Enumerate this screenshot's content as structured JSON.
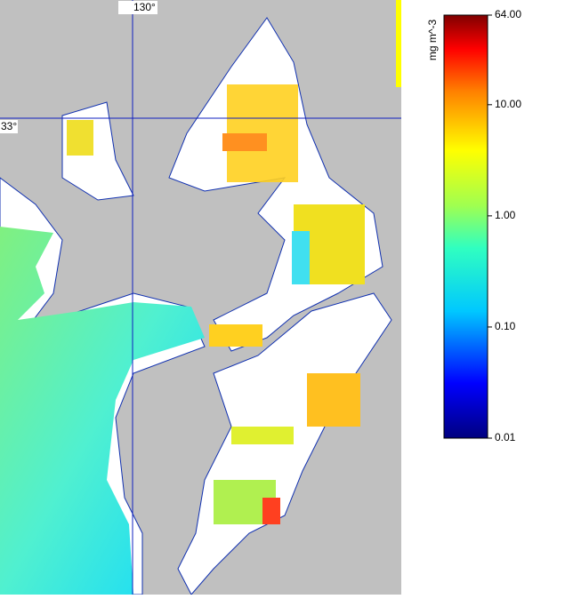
{
  "map": {
    "grid_labels": {
      "longitude": "130°",
      "latitude": "33°"
    },
    "colorbar": {
      "unit": "mg m^-3",
      "log": true,
      "lim": [
        0.01,
        64
      ],
      "ticks": [
        {
          "value": 64,
          "label": "64.00"
        },
        {
          "value": 10,
          "label": "10.00"
        },
        {
          "value": 1,
          "label": "1.00"
        },
        {
          "value": 0.1,
          "label": "0.10"
        },
        {
          "value": 0.01,
          "label": "0.01"
        }
      ]
    }
  }
}
